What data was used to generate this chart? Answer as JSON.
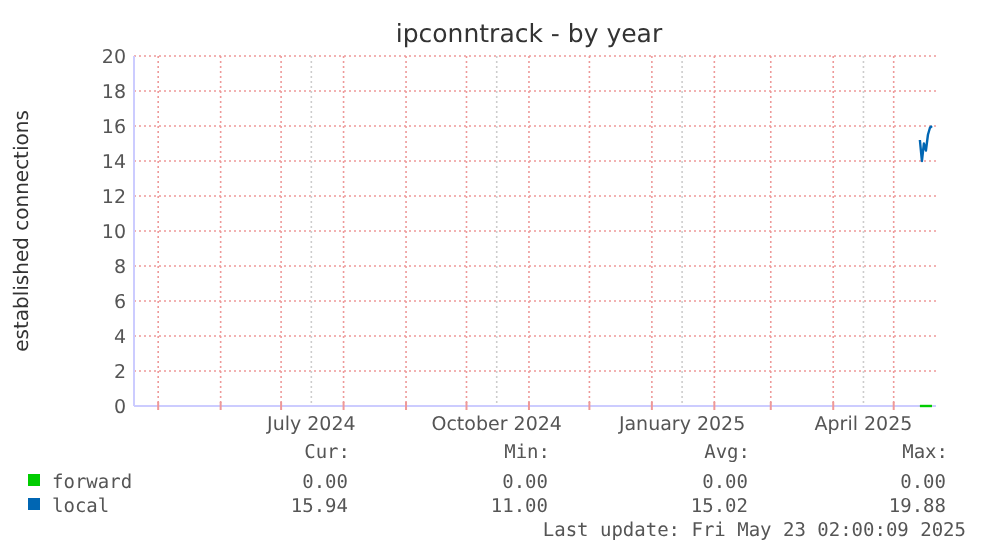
{
  "chart_data": {
    "type": "line",
    "title": "ipconntrack - by year",
    "ylabel": "established connections",
    "xlim": [
      "2024-04-19",
      "2025-05-22"
    ],
    "xticks": [
      {
        "value": "2024-05-01",
        "label": null
      },
      {
        "value": "2024-06-01",
        "label": null
      },
      {
        "value": "2024-07-01",
        "label": null
      },
      {
        "value": "2024-07-16",
        "label": "July 2024"
      },
      {
        "value": "2024-08-01",
        "label": null
      },
      {
        "value": "2024-09-01",
        "label": null
      },
      {
        "value": "2024-10-01",
        "label": null
      },
      {
        "value": "2024-10-16",
        "label": "October 2024"
      },
      {
        "value": "2024-11-01",
        "label": null
      },
      {
        "value": "2024-12-01",
        "label": null
      },
      {
        "value": "2025-01-01",
        "label": null
      },
      {
        "value": "2025-01-16",
        "label": "January 2025"
      },
      {
        "value": "2025-02-01",
        "label": null
      },
      {
        "value": "2025-03-01",
        "label": null
      },
      {
        "value": "2025-04-01",
        "label": null
      },
      {
        "value": "2025-04-16",
        "label": "April 2025"
      },
      {
        "value": "2025-05-01",
        "label": null
      }
    ],
    "ylim": [
      0,
      20
    ],
    "yticks": [
      0,
      2,
      4,
      6,
      8,
      10,
      12,
      14,
      16,
      18,
      20
    ],
    "grid": true,
    "legend": "bottom",
    "x": [
      "2025-05-14",
      "2025-05-15",
      "2025-05-16",
      "2025-05-17",
      "2025-05-18",
      "2025-05-19",
      "2025-05-20"
    ],
    "series": [
      {
        "name": "forward",
        "color": "#00cc00",
        "values": [
          0,
          0,
          0,
          0,
          0,
          0,
          0
        ]
      },
      {
        "name": "local",
        "color": "#0066b3",
        "values": [
          15.2,
          14.0,
          15.0,
          14.6,
          15.5,
          15.9,
          16.0
        ]
      }
    ],
    "annotations": [
      "Cur:",
      "Min:",
      "Avg:",
      "Max:",
      "0.00",
      "0.00",
      "0.00",
      "0.00",
      "15.94",
      "11.00",
      "15.02",
      "19.88",
      "Last update: Fri May 23 02:00:09 2025"
    ]
  }
}
